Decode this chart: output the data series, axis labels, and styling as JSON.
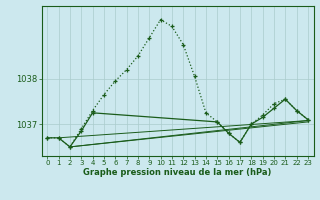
{
  "background_color": "#cce8ee",
  "grid_color": "#aacccc",
  "line_color": "#1a5c1a",
  "xlabel": "Graphe pression niveau de la mer (hPa)",
  "xlim": [
    -0.5,
    23.5
  ],
  "ylim": [
    1036.3,
    1039.6
  ],
  "yticks": [
    1037,
    1038
  ],
  "xticks": [
    0,
    1,
    2,
    3,
    4,
    5,
    6,
    7,
    8,
    9,
    10,
    11,
    12,
    13,
    14,
    15,
    16,
    17,
    18,
    19,
    20,
    21,
    22,
    23
  ],
  "main_line": [
    1036.7,
    1036.7,
    1036.5,
    1036.9,
    1037.3,
    1037.65,
    1037.95,
    1038.2,
    1038.5,
    1038.9,
    1039.3,
    1039.15,
    1038.75,
    1038.05,
    1037.25,
    1037.05,
    1036.8,
    1036.6,
    1037.0,
    1037.2,
    1037.45,
    1037.55,
    1037.3,
    1037.1
  ],
  "line_solid1": {
    "x": [
      0,
      1,
      2,
      3,
      4,
      15,
      16,
      17,
      18,
      19,
      20,
      21,
      22,
      23
    ],
    "y": [
      1036.7,
      1036.7,
      1036.5,
      1036.85,
      1037.25,
      1037.05,
      1036.8,
      1036.6,
      1037.0,
      1037.15,
      1037.35,
      1037.55,
      1037.3,
      1037.1
    ]
  },
  "flat_a": {
    "x": [
      1,
      23
    ],
    "y": [
      1036.7,
      1037.08
    ]
  },
  "flat_b": {
    "x": [
      2,
      23
    ],
    "y": [
      1036.5,
      1037.08
    ]
  },
  "flat_c": {
    "x": [
      2,
      23
    ],
    "y": [
      1036.5,
      1037.05
    ]
  }
}
